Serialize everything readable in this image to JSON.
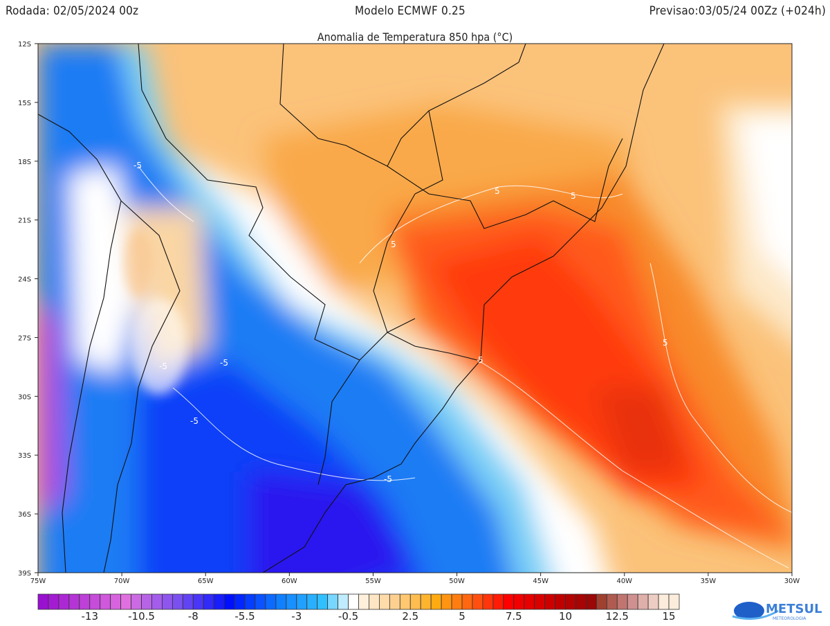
{
  "header": {
    "run": "Rodada: 02/05/2024 00z",
    "model": "Modelo ECMWF 0.25",
    "forecast": "Previsao:03/05/24 00Zz (+024h)"
  },
  "title": "Anomalia de Temperatura 850 hpa (°C)",
  "axes": {
    "lat_ticks": [
      "12S",
      "15S",
      "18S",
      "21S",
      "24S",
      "27S",
      "30S",
      "33S",
      "36S",
      "39S"
    ],
    "lon_ticks": [
      "75W",
      "70W",
      "65W",
      "60W",
      "55W",
      "50W",
      "45W",
      "40W",
      "35W",
      "30W"
    ]
  },
  "contour_labels": [
    "-5",
    "-5",
    "-5",
    "-5",
    "-5",
    "5",
    "5",
    "5",
    "5",
    "5"
  ],
  "colorbar": {
    "min": -15.5,
    "max": 15,
    "step": 0.5,
    "labels": [
      "-13",
      "-10.5",
      "-8",
      "-5.5",
      "-3",
      "-0.5",
      "2.5",
      "5",
      "7.5",
      "10",
      "12.5",
      "15"
    ],
    "stops": [
      [
        0,
        "#9a10d0"
      ],
      [
        8,
        "#e070e0"
      ],
      [
        13,
        "#7a50f0"
      ],
      [
        18,
        "#0010ff"
      ],
      [
        23,
        "#1080ff"
      ],
      [
        27,
        "#30c0ff"
      ],
      [
        29,
        "#c0ecff"
      ],
      [
        30,
        "#ffffff"
      ],
      [
        31,
        "#fff0dc"
      ],
      [
        34,
        "#fdd090"
      ],
      [
        38,
        "#ffaa10"
      ],
      [
        42,
        "#ff5010"
      ],
      [
        45,
        "#ff0000"
      ],
      [
        50,
        "#c00000"
      ],
      [
        53,
        "#9a0808"
      ],
      [
        54,
        "#a04030"
      ],
      [
        57,
        "#d09090"
      ],
      [
        60,
        "#fcecdc"
      ]
    ]
  },
  "logo": {
    "name": "METSUL",
    "sub": "METEOROLOGIA"
  }
}
